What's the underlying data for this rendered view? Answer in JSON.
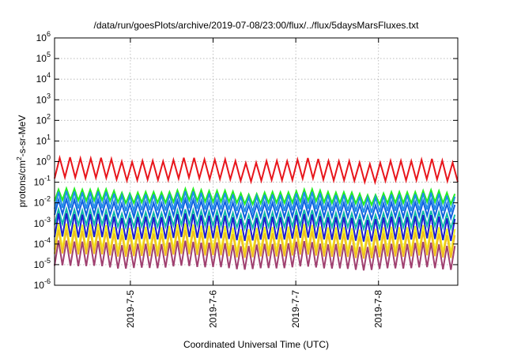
{
  "chart_data": {
    "type": "line",
    "title": "/data/run/goesPlots/archive/2019-07-08/23:00/flux/../flux/5daysMarsFluxes.txt",
    "xlabel": "Coordinated Universal Time (UTC)",
    "ylabel_base": "protons/cm",
    "ylabel_sup": "2",
    "ylabel_rest": "-s-sr-MeV",
    "yscale": "log",
    "ylim": [
      1e-06,
      1000000.0
    ],
    "y_ticks": [
      {
        "base": "10",
        "exp": "-6",
        "value": 1e-06
      },
      {
        "base": "10",
        "exp": "-5",
        "value": 1e-05
      },
      {
        "base": "10",
        "exp": "-4",
        "value": 0.0001
      },
      {
        "base": "10",
        "exp": "-3",
        "value": 0.001
      },
      {
        "base": "10",
        "exp": "-2",
        "value": 0.01
      },
      {
        "base": "10",
        "exp": "-1",
        "value": 0.1
      },
      {
        "base": "10",
        "exp": "0",
        "value": 1
      },
      {
        "base": "10",
        "exp": "1",
        "value": 10
      },
      {
        "base": "10",
        "exp": "2",
        "value": 100
      },
      {
        "base": "10",
        "exp": "3",
        "value": 1000
      },
      {
        "base": "10",
        "exp": "4",
        "value": 10000
      },
      {
        "base": "10",
        "exp": "5",
        "value": 100000
      },
      {
        "base": "10",
        "exp": "6",
        "value": 1000000
      }
    ],
    "xlim": [
      "2019-07-04 02:00",
      "2019-07-08 23:00"
    ],
    "x_ticks": [
      {
        "label": "2019-7-5",
        "date": "2019-07-05 00:00"
      },
      {
        "label": "2019-7-6",
        "date": "2019-07-06 00:00"
      },
      {
        "label": "2019-7-7",
        "date": "2019-07-07 00:00"
      },
      {
        "label": "2019-7-8",
        "date": "2019-07-08 00:00"
      }
    ],
    "grid": true,
    "series": [
      {
        "color": "#e8161c",
        "low": 0.15,
        "high": 1.3,
        "period_h": 3.0,
        "phase": 0.1
      },
      {
        "color": "#22ee22",
        "low": 0.012,
        "high": 0.04,
        "period_h": 2.3,
        "phase": 0.0
      },
      {
        "color": "#1f8fe8",
        "low": 0.005,
        "high": 0.03,
        "period_h": 2.3,
        "phase": 0.3
      },
      {
        "color": "#1060e0",
        "low": 0.0025,
        "high": 0.012,
        "period_h": 2.3,
        "phase": 0.6
      },
      {
        "color": "#10b8a8",
        "low": 0.0008,
        "high": 0.004,
        "period_h": 2.3,
        "phase": 0.9
      },
      {
        "color": "#1c1cd0",
        "low": 0.0002,
        "high": 0.0025,
        "period_h": 2.3,
        "phase": 1.2
      },
      {
        "color": "#f0f020",
        "low": 5e-05,
        "high": 0.0008,
        "period_h": 2.3,
        "phase": 1.5
      },
      {
        "color": "#f0c020",
        "low": 3e-05,
        "high": 0.0004,
        "period_h": 2.3,
        "phase": 1.7
      },
      {
        "color": "#a04070",
        "low": 8e-06,
        "high": 0.00012,
        "period_h": 2.3,
        "phase": 1.9
      }
    ]
  }
}
